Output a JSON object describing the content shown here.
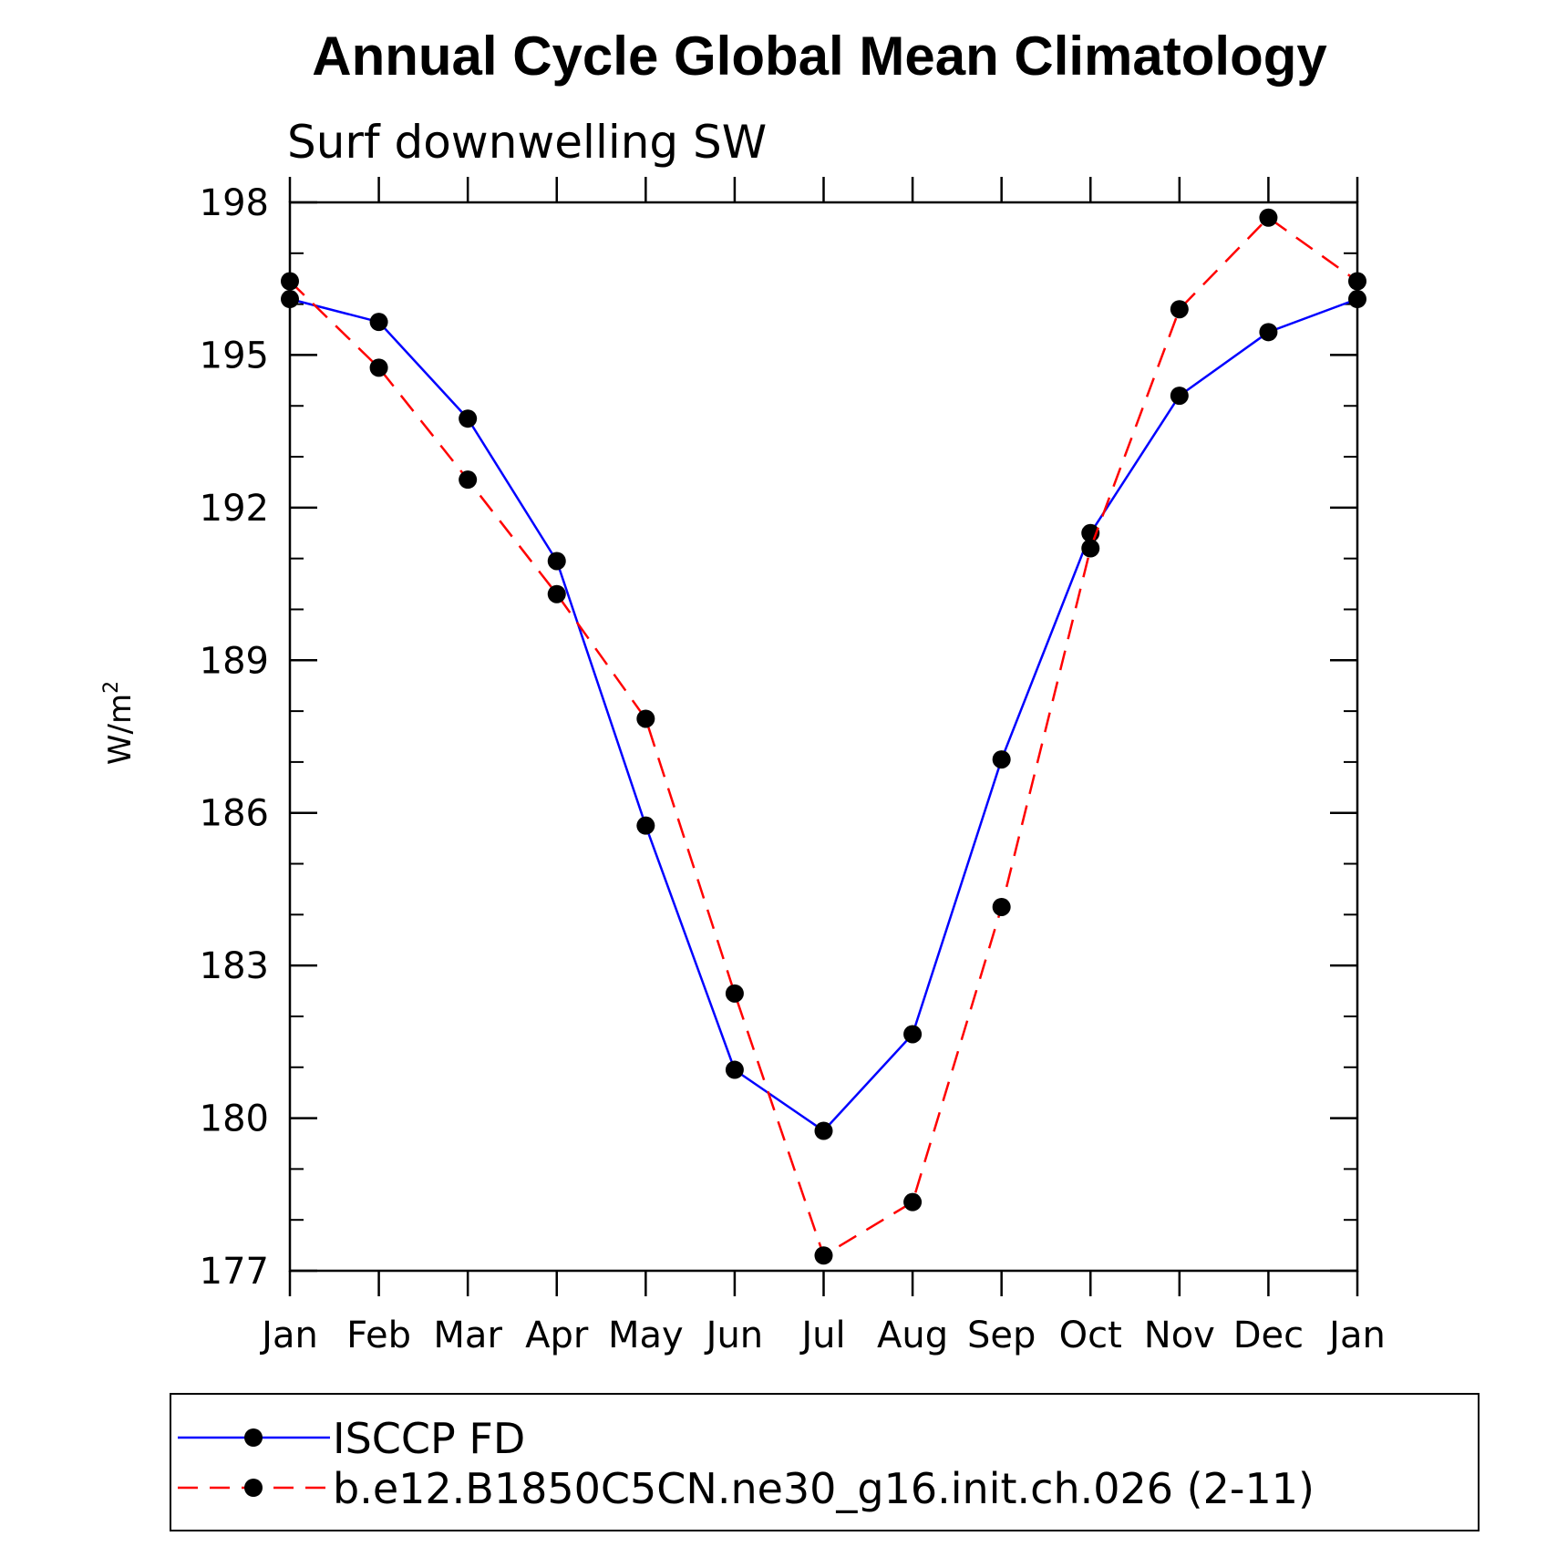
{
  "chart_data": {
    "type": "line",
    "title": "Annual Cycle Global Mean Climatology",
    "subtitle": "Surf downwelling SW",
    "ylabel": "W/m",
    "ylabel_superscript": "2",
    "xlabel": "",
    "categories": [
      "Jan",
      "Feb",
      "Mar",
      "Apr",
      "May",
      "Jun",
      "Jul",
      "Aug",
      "Sep",
      "Oct",
      "Nov",
      "Dec",
      "Jan"
    ],
    "ylim": [
      177,
      198
    ],
    "yticks": [
      177,
      180,
      183,
      186,
      189,
      192,
      195,
      198
    ],
    "grid": false,
    "legend_position": "bottom",
    "series": [
      {
        "name": "ISCCP FD",
        "color": "#0000ff",
        "dash": "solid",
        "marker": "filled-circle",
        "values": [
          196.1,
          195.65,
          193.75,
          190.95,
          185.75,
          180.95,
          179.75,
          181.65,
          187.05,
          191.5,
          194.2,
          195.45,
          196.1
        ]
      },
      {
        "name": "b.e12.B1850C5CN.ne30_g16.init.ch.026 (2-11)",
        "color": "#ff0000",
        "dash": "dashed",
        "marker": "filled-circle",
        "values": [
          196.45,
          194.75,
          192.55,
          190.3,
          187.85,
          182.45,
          177.3,
          178.35,
          184.15,
          191.2,
          195.9,
          197.7,
          196.45
        ]
      }
    ]
  }
}
